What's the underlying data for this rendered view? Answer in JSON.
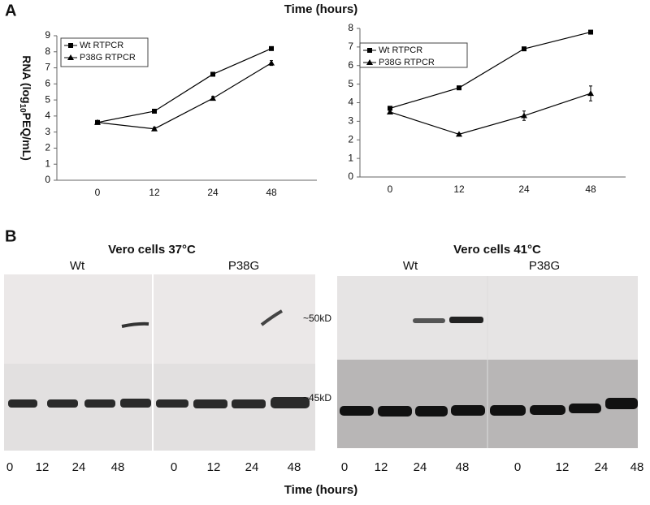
{
  "panel_labels": [
    "A",
    "B"
  ],
  "top_axis_title": "Time (hours)",
  "chart_data": [
    {
      "type": "line",
      "ylabel": [
        "RNA (log",
        "10",
        "PEQ/mL)"
      ],
      "categories": [
        "0",
        "12",
        "24",
        "48"
      ],
      "ylim": [
        0,
        9
      ],
      "yticks": [
        0,
        1,
        2,
        3,
        4,
        5,
        6,
        7,
        8,
        9
      ],
      "series": [
        {
          "name": "Wt RTPCR",
          "color": "#000000",
          "marker": "square",
          "values": [
            3.6,
            4.3,
            6.6,
            8.2
          ],
          "errors": [
            0.05,
            0.08,
            0.08,
            0.08
          ]
        },
        {
          "name": "P38G RTPCR",
          "color": "#000000",
          "marker": "triangle",
          "values": [
            3.6,
            3.2,
            5.1,
            7.3
          ],
          "errors": [
            0.05,
            0.1,
            0.12,
            0.15
          ]
        }
      ]
    },
    {
      "type": "line",
      "categories": [
        "0",
        "12",
        "24",
        "48"
      ],
      "ylim": [
        0,
        8
      ],
      "yticks": [
        0,
        1,
        2,
        3,
        4,
        5,
        6,
        7,
        8
      ],
      "series": [
        {
          "name": "Wt RTPCR",
          "color": "#000000",
          "marker": "square",
          "values": [
            3.7,
            4.8,
            6.9,
            7.8
          ],
          "errors": [
            0.05,
            0.05,
            0.05,
            0.05
          ]
        },
        {
          "name": "P38G RTPCR",
          "color": "#000000",
          "marker": "triangle",
          "values": [
            3.5,
            2.3,
            3.3,
            4.5
          ],
          "errors": [
            0.1,
            0.05,
            0.25,
            0.4
          ]
        }
      ]
    }
  ],
  "blots": [
    {
      "title": "Vero cells 37°C",
      "groups": [
        "Wt",
        "P38G"
      ],
      "lanes": [
        "0",
        "12",
        "24",
        "48",
        "0",
        "12",
        "24",
        "48"
      ]
    },
    {
      "title": "Vero cells 41°C",
      "groups": [
        "Wt",
        "P38G"
      ],
      "lanes": [
        "0",
        "12",
        "24",
        "48",
        "0",
        "12",
        "24",
        "48"
      ]
    }
  ],
  "markers": [
    "~50kD",
    "~45kD"
  ],
  "bottom_axis_title": "Time (hours)"
}
